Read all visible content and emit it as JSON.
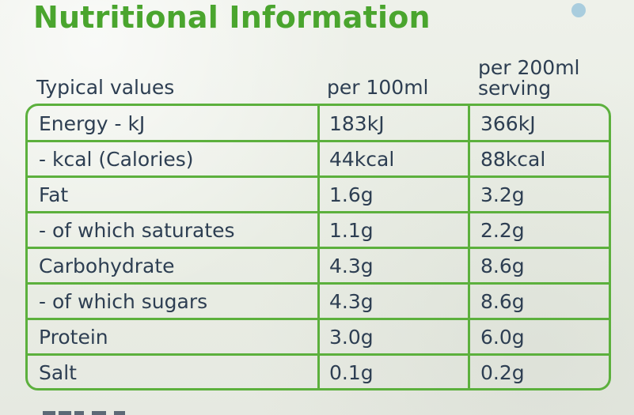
{
  "panel": {
    "title": "Nutritional Information",
    "headers": {
      "typical": "Typical values",
      "per100": "per 100ml",
      "per200": "per 200ml\nserving"
    },
    "rows": [
      {
        "label": "Energy - kJ",
        "per100": "183kJ",
        "per200": "366kJ"
      },
      {
        "label": "- kcal (Calories)",
        "per100": "44kcal",
        "per200": "88kcal"
      },
      {
        "label": "Fat",
        "per100": "1.6g",
        "per200": "3.2g"
      },
      {
        "label": "- of which saturates",
        "per100": "1.1g",
        "per200": "2.2g"
      },
      {
        "label": "Carbohydrate",
        "per100": "4.3g",
        "per200": "8.6g"
      },
      {
        "label": "- of which sugars",
        "per100": "4.3g",
        "per200": "8.6g"
      },
      {
        "label": "Protein",
        "per100": "3.0g",
        "per200": "6.0g"
      },
      {
        "label": "Salt",
        "per100": "0.1g",
        "per200": "0.2g"
      }
    ]
  },
  "colors": {
    "accent_green": "#4aa52e",
    "border_green": "#5cb03d",
    "text_dark": "#2d3e52",
    "background": "#eef0e8"
  }
}
